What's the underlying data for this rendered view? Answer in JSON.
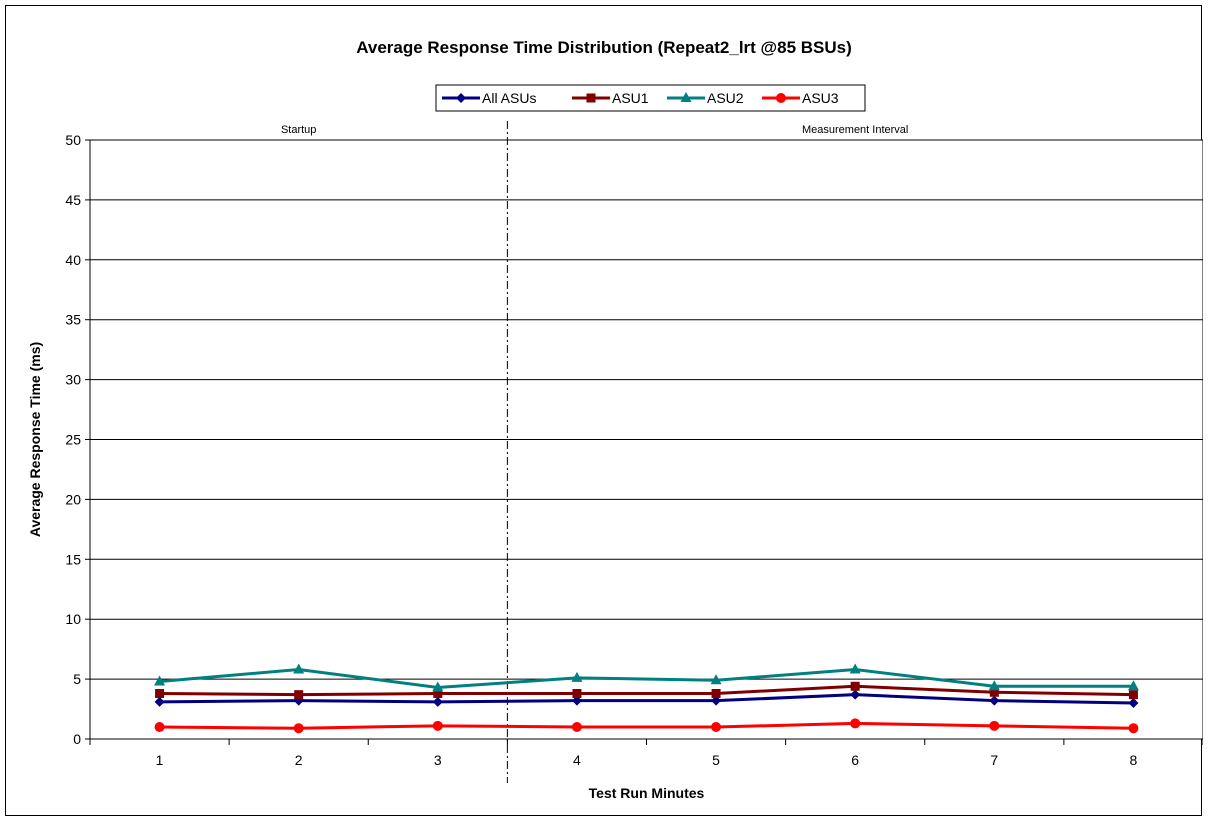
{
  "chart_data": {
    "type": "line",
    "title": "Average Response Time Distribution (Repeat2_lrt @85 BSUs)",
    "xlabel": "Test Run Minutes",
    "ylabel": "Average Response Time (ms)",
    "categories": [
      "1",
      "2",
      "3",
      "4",
      "5",
      "6",
      "7",
      "8"
    ],
    "ylim": [
      0,
      50
    ],
    "yticks": [
      "0",
      "5",
      "10",
      "15",
      "20",
      "25",
      "30",
      "35",
      "40",
      "45",
      "50"
    ],
    "grid": "horizontal",
    "legend_position": "top-center",
    "series": [
      {
        "name": "All ASUs",
        "color": "#000080",
        "marker": "diamond",
        "values": [
          3.1,
          3.2,
          3.1,
          3.2,
          3.2,
          3.7,
          3.2,
          3.0
        ]
      },
      {
        "name": "ASU1",
        "color": "#800000",
        "marker": "square",
        "values": [
          3.8,
          3.7,
          3.8,
          3.8,
          3.8,
          4.4,
          3.9,
          3.7
        ]
      },
      {
        "name": "ASU2",
        "color": "#008080",
        "marker": "triangle",
        "values": [
          4.8,
          5.8,
          4.3,
          5.1,
          4.9,
          5.8,
          4.4,
          4.4
        ]
      },
      {
        "name": "ASU3",
        "color": "#ff0000",
        "marker": "circle",
        "values": [
          1.0,
          0.9,
          1.1,
          1.0,
          1.0,
          1.3,
          1.1,
          0.9
        ]
      }
    ],
    "divider_after_category": "3",
    "annotations": [
      {
        "text": "Startup",
        "region": "before-divider"
      },
      {
        "text": "Measurement Interval",
        "region": "after-divider"
      }
    ]
  }
}
